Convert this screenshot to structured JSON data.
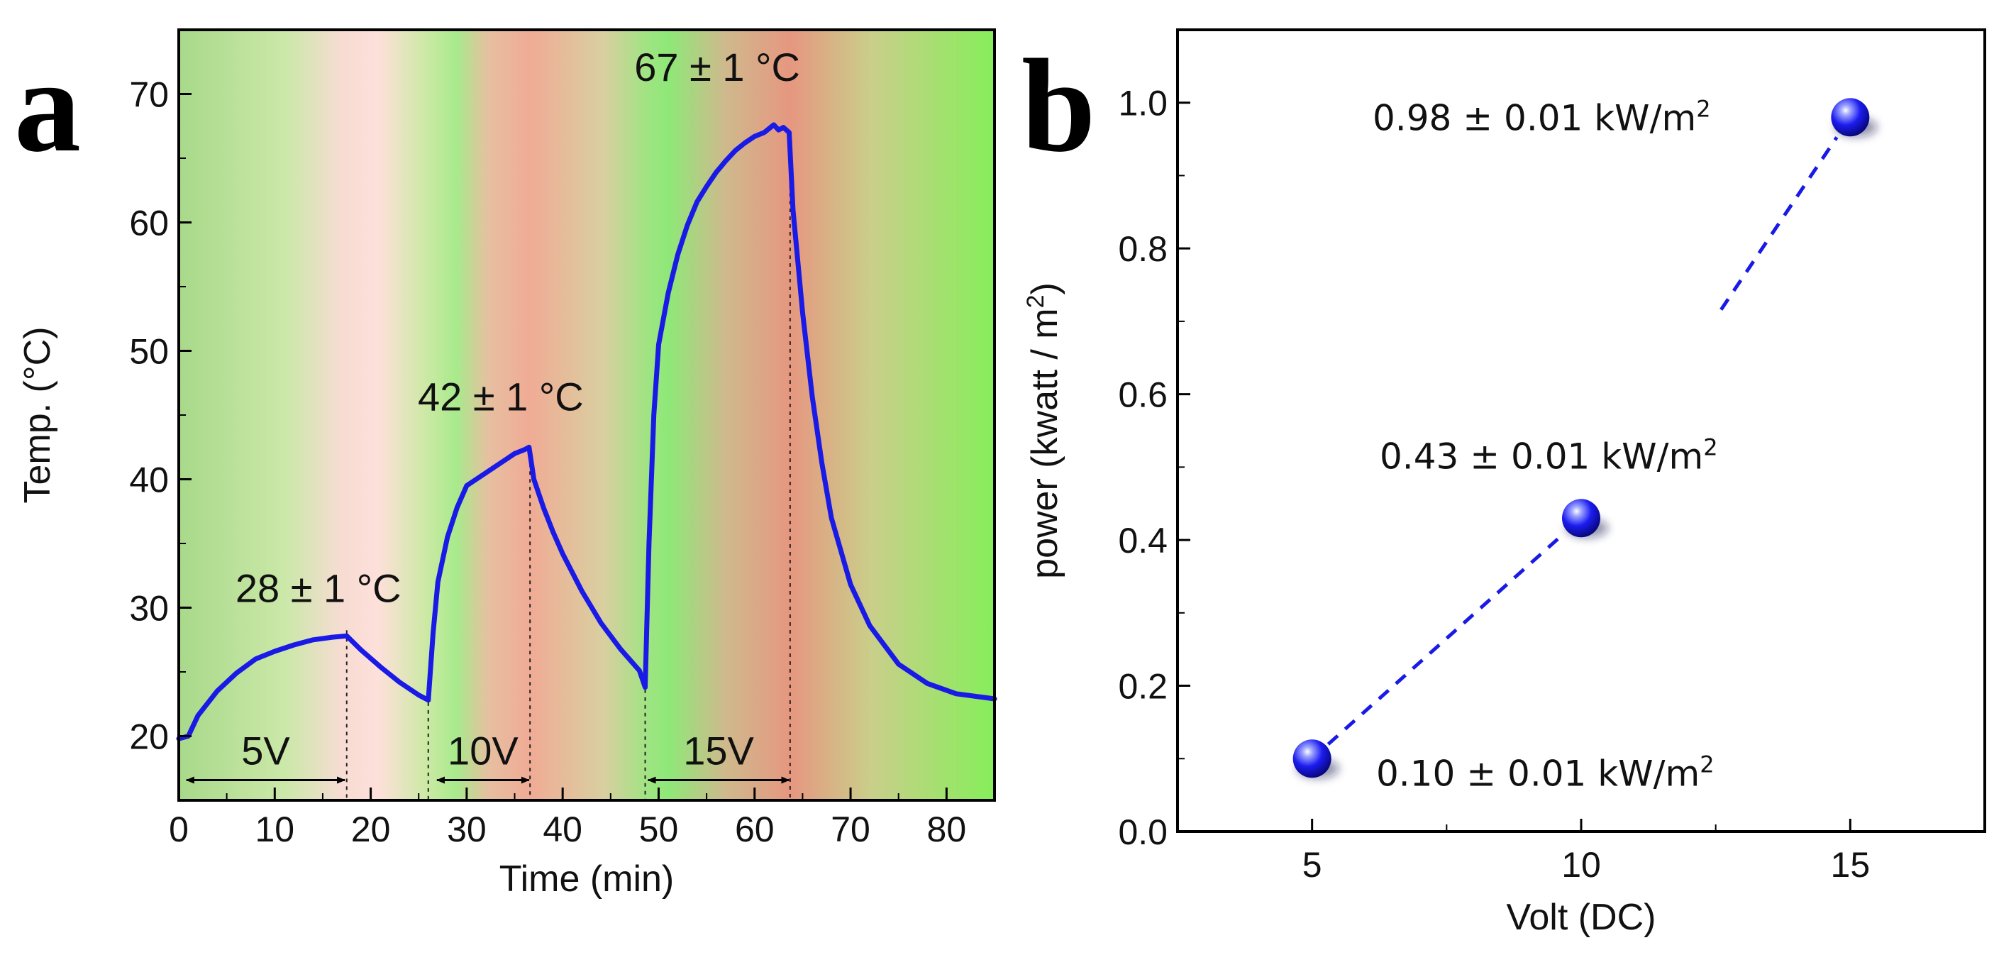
{
  "panels": {
    "a": "a",
    "b": "b"
  },
  "chart_data": [
    {
      "type": "line",
      "panel": "a",
      "xlabel": "Time (min)",
      "ylabel": "Temp. (°C)",
      "xlim": [
        0,
        85
      ],
      "ylim": [
        15,
        75
      ],
      "xticks": [
        0,
        10,
        20,
        30,
        40,
        50,
        60,
        70,
        80
      ],
      "yticks": [
        20,
        30,
        40,
        50,
        60,
        70
      ],
      "series": [
        {
          "name": "Temperature",
          "color": "#1a1ae6",
          "x": [
            0,
            1,
            2,
            4,
            6,
            8,
            10,
            12,
            14,
            16,
            17.5,
            19,
            21,
            23,
            25,
            26,
            26.5,
            27,
            28,
            29,
            30,
            31,
            32,
            33,
            34,
            35,
            36,
            36.5,
            37,
            38,
            39,
            40,
            42,
            44,
            46,
            48,
            48.6,
            49,
            49.5,
            50,
            51,
            52,
            53,
            54,
            55,
            56,
            57,
            58,
            59,
            60,
            61,
            62,
            62.5,
            63,
            63.6,
            64,
            65,
            66,
            67,
            68,
            70,
            72,
            75,
            78,
            81,
            85
          ],
          "y": [
            19.8,
            20,
            21.6,
            23.5,
            24.9,
            26,
            26.6,
            27.1,
            27.5,
            27.7,
            27.8,
            26.7,
            25.4,
            24.2,
            23.2,
            22.8,
            28,
            32,
            35.5,
            37.8,
            39.5,
            40,
            40.5,
            41,
            41.5,
            42,
            42.3,
            42.5,
            40,
            37.8,
            35.9,
            34.2,
            31.3,
            28.8,
            26.8,
            25.1,
            23.8,
            35,
            45,
            50.5,
            54.5,
            57.5,
            59.8,
            61.6,
            62.8,
            63.9,
            64.8,
            65.6,
            66.2,
            66.7,
            67,
            67.6,
            67.2,
            67.4,
            67,
            61,
            53,
            46.5,
            41.3,
            37,
            31.8,
            28.6,
            25.6,
            24.1,
            23.3,
            22.9
          ]
        }
      ],
      "annotations": {
        "peak1": "28 ± 1 °C",
        "peak2": "42 ± 1 °C",
        "peak3": "67 ± 1 °C",
        "v1": "5V",
        "v2": "10V",
        "v3": "15V"
      },
      "voltage_intervals": [
        {
          "label": "5V",
          "start": 0.8,
          "end": 17.3
        },
        {
          "label": "10V",
          "start": 26.9,
          "end": 36.5
        },
        {
          "label": "15V",
          "start": 48.9,
          "end": 63.6
        }
      ],
      "vertical_markers": [
        17.5,
        26,
        36.6,
        48.6,
        63.7
      ]
    },
    {
      "type": "scatter",
      "panel": "b",
      "xlabel": "Volt (DC)",
      "ylabel_main": "power (kwatt / m",
      "ylabel_sup": "2",
      "ylabel_end": ")",
      "xlim": [
        2.5,
        17.5
      ],
      "ylim": [
        0.0,
        1.1
      ],
      "xticks": [
        5,
        10,
        15
      ],
      "yticks": [
        "0.0",
        "0.2",
        "0.4",
        "0.6",
        "0.8",
        "1.0"
      ],
      "series": [
        {
          "name": "Power",
          "color": "#1a1ae6",
          "x": [
            5,
            10,
            15
          ],
          "y": [
            0.1,
            0.43,
            0.98
          ]
        }
      ],
      "point_labels": [
        {
          "main": "0.10 ± 0.01 kW/m",
          "sup": "2"
        },
        {
          "main": "0.43 ± 0.01 kW/m",
          "sup": "2"
        },
        {
          "main": "0.98 ± 0.01 kW/m",
          "sup": "2"
        }
      ]
    }
  ]
}
